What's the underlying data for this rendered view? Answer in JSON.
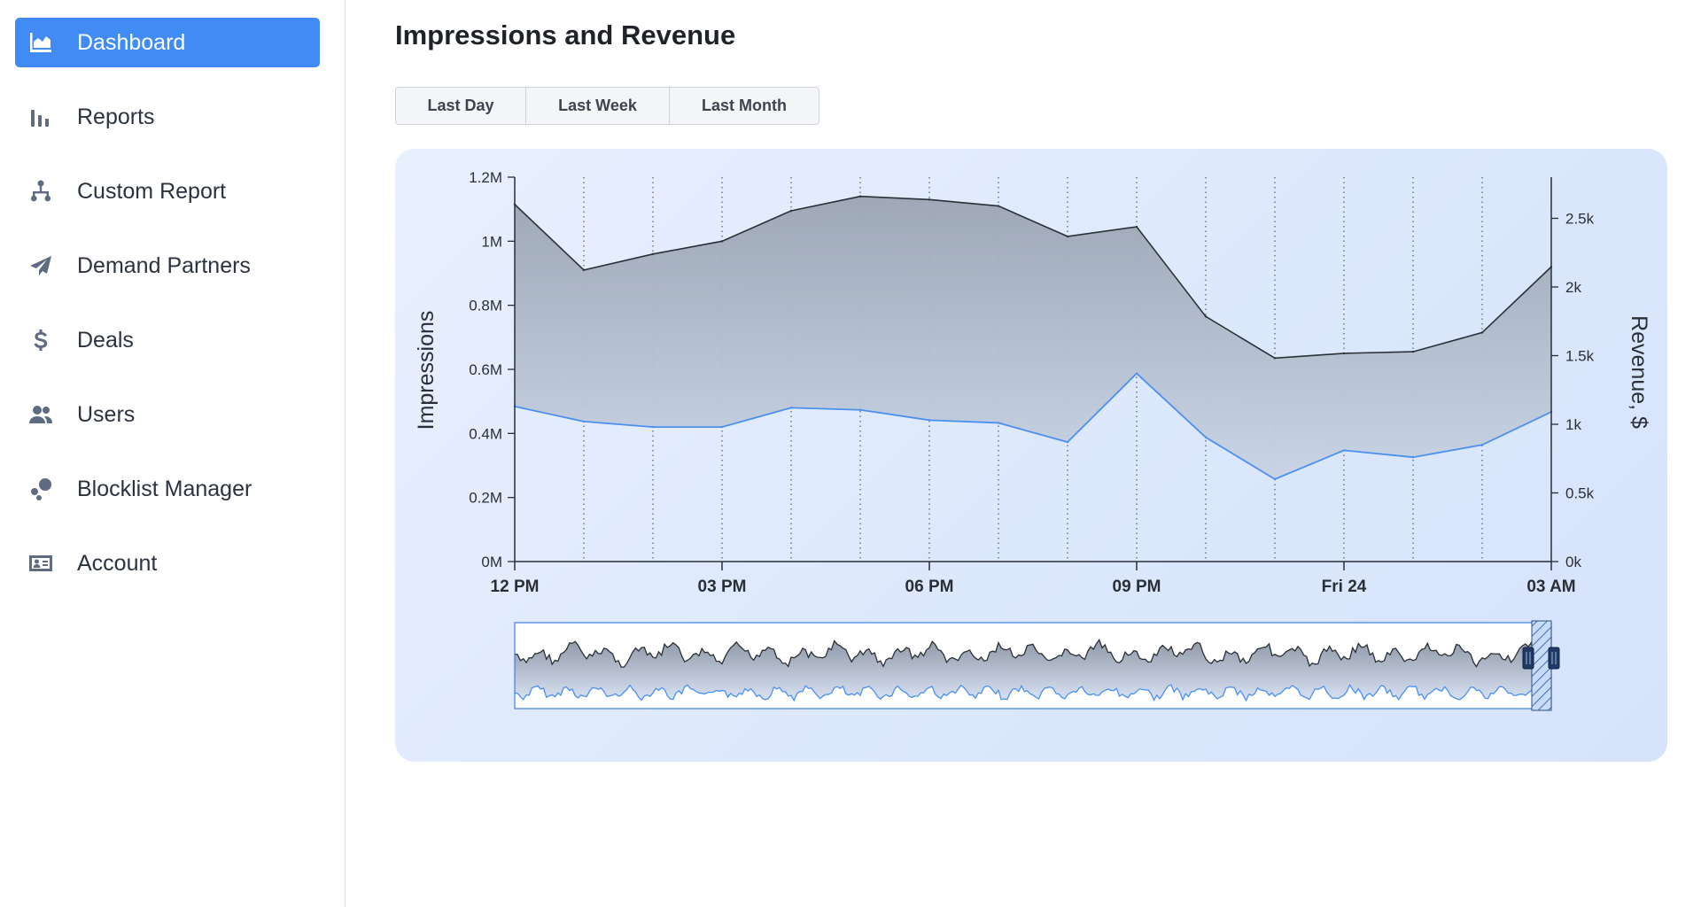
{
  "sidebar": {
    "items": [
      {
        "label": "Dashboard",
        "icon": "area-chart-icon",
        "active": true
      },
      {
        "label": "Reports",
        "icon": "bar-chart-icon",
        "active": false
      },
      {
        "label": "Custom Report",
        "icon": "sitemap-icon",
        "active": false
      },
      {
        "label": "Demand Partners",
        "icon": "paper-plane-icon",
        "active": false
      },
      {
        "label": "Deals",
        "icon": "dollar-icon",
        "active": false
      },
      {
        "label": "Users",
        "icon": "users-icon",
        "active": false
      },
      {
        "label": "Blocklist Manager",
        "icon": "blocklist-icon",
        "active": false
      },
      {
        "label": "Account",
        "icon": "id-card-icon",
        "active": false
      }
    ]
  },
  "main": {
    "title": "Impressions and Revenue",
    "ranges": [
      {
        "label": "Last Day"
      },
      {
        "label": "Last Week"
      },
      {
        "label": "Last Month"
      }
    ]
  },
  "colors": {
    "accent": "#418cf4",
    "impressions_line": "#2b3036",
    "revenue_line": "#4a90f0"
  },
  "chart_data": {
    "type": "area",
    "title": "Impressions and Revenue",
    "ylabel": "Impressions",
    "y2label": "Revenue, $",
    "ylim": [
      0,
      1200000
    ],
    "y2lim": [
      0,
      2800
    ],
    "y_ticks": [
      {
        "value": 0,
        "label": "0M"
      },
      {
        "value": 200000,
        "label": "0.2M"
      },
      {
        "value": 400000,
        "label": "0.4M"
      },
      {
        "value": 600000,
        "label": "0.6M"
      },
      {
        "value": 800000,
        "label": "0.8M"
      },
      {
        "value": 1000000,
        "label": "1M"
      },
      {
        "value": 1200000,
        "label": "1.2M"
      }
    ],
    "y2_ticks": [
      {
        "value": 0,
        "label": "0k"
      },
      {
        "value": 500,
        "label": "0.5k"
      },
      {
        "value": 1000,
        "label": "1k"
      },
      {
        "value": 1500,
        "label": "1.5k"
      },
      {
        "value": 2000,
        "label": "2k"
      },
      {
        "value": 2500,
        "label": "2.5k"
      }
    ],
    "x_hours": [
      0,
      1,
      2,
      3,
      4,
      5,
      6,
      7,
      8,
      9,
      10,
      11,
      12,
      13,
      14,
      15
    ],
    "x_ticks": [
      {
        "hour": 0,
        "label": "12 PM"
      },
      {
        "hour": 3,
        "label": "03 PM"
      },
      {
        "hour": 6,
        "label": "06 PM"
      },
      {
        "hour": 9,
        "label": "09 PM"
      },
      {
        "hour": 12,
        "label": "Fri 24"
      },
      {
        "hour": 15,
        "label": "03 AM"
      }
    ],
    "series": [
      {
        "name": "Impressions",
        "axis": "left",
        "values": [
          1115000,
          910000,
          960000,
          1000000,
          1095000,
          1140000,
          1130000,
          1110000,
          1015000,
          1045000,
          765000,
          635000,
          650000,
          655000,
          715000,
          920000
        ]
      },
      {
        "name": "Revenue",
        "axis": "right",
        "values": [
          1130,
          1020,
          980,
          980,
          1120,
          1105,
          1030,
          1010,
          870,
          1370,
          905,
          600,
          810,
          760,
          850,
          1090
        ]
      }
    ],
    "grid": true,
    "grid_style": "vertical-dotted"
  }
}
